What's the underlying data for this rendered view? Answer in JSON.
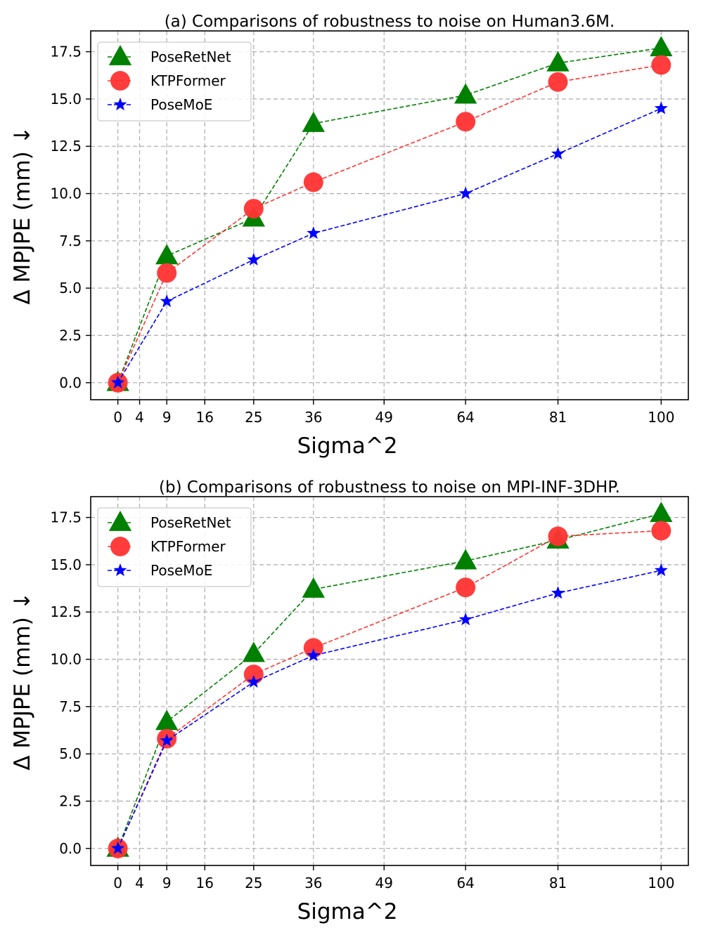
{
  "chart_data": [
    {
      "type": "line",
      "title": "(a) Comparisons of robustness to noise on Human3.6M.",
      "xlabel": "Sigma^2",
      "ylabel": "Δ MPJPE (mm) ↓",
      "xlim": [
        -5,
        105
      ],
      "ylim": [
        -0.9,
        18.6
      ],
      "x_ticks": [
        0,
        4,
        9,
        16,
        25,
        36,
        49,
        64,
        81,
        100
      ],
      "y_ticks": [
        0,
        2.5,
        5,
        7.5,
        10,
        12.5,
        15,
        17.5
      ],
      "y_tick_labels": [
        "0.0",
        "2.5",
        "5.0",
        "7.5",
        "10.0",
        "12.5",
        "15.0",
        "17.5"
      ],
      "grid": true,
      "legend_position": "top-left",
      "x": [
        0,
        9,
        25,
        36,
        64,
        81,
        100
      ],
      "series": [
        {
          "name": "PoseRetNet",
          "color": "#008000",
          "marker": "triangle",
          "values": [
            0,
            6.7,
            8.7,
            13.7,
            15.2,
            16.9,
            17.7
          ]
        },
        {
          "name": "KTPFormer",
          "color": "#ff3333",
          "marker": "circle",
          "values": [
            0,
            5.8,
            9.2,
            10.6,
            13.8,
            15.9,
            16.8
          ]
        },
        {
          "name": "PoseMoE",
          "color": "#0000ff",
          "marker": "star",
          "values": [
            0,
            4.3,
            6.5,
            7.9,
            10.0,
            12.1,
            14.5
          ]
        }
      ]
    },
    {
      "type": "line",
      "title": "(b) Comparisons of robustness to noise on MPI-INF-3DHP.",
      "xlabel": "Sigma^2",
      "ylabel": "Δ MPJPE (mm) ↓",
      "xlim": [
        -5,
        105
      ],
      "ylim": [
        -0.9,
        18.6
      ],
      "x_ticks": [
        0,
        4,
        9,
        16,
        25,
        36,
        49,
        64,
        81,
        100
      ],
      "y_ticks": [
        0,
        2.5,
        5,
        7.5,
        10,
        12.5,
        15,
        17.5
      ],
      "y_tick_labels": [
        "0.0",
        "2.5",
        "5.0",
        "7.5",
        "10.0",
        "12.5",
        "15.0",
        "17.5"
      ],
      "grid": true,
      "legend_position": "top-left",
      "x": [
        0,
        9,
        25,
        36,
        64,
        81,
        100
      ],
      "series": [
        {
          "name": "PoseRetNet",
          "color": "#008000",
          "marker": "triangle",
          "values": [
            0,
            6.7,
            10.3,
            13.7,
            15.2,
            16.3,
            17.7
          ]
        },
        {
          "name": "KTPFormer",
          "color": "#ff3333",
          "marker": "circle",
          "values": [
            0,
            5.8,
            9.2,
            10.6,
            13.8,
            16.5,
            16.8
          ]
        },
        {
          "name": "PoseMoE",
          "color": "#0000ff",
          "marker": "star",
          "values": [
            0,
            5.7,
            8.8,
            10.2,
            12.1,
            13.5,
            14.7
          ]
        }
      ]
    }
  ]
}
